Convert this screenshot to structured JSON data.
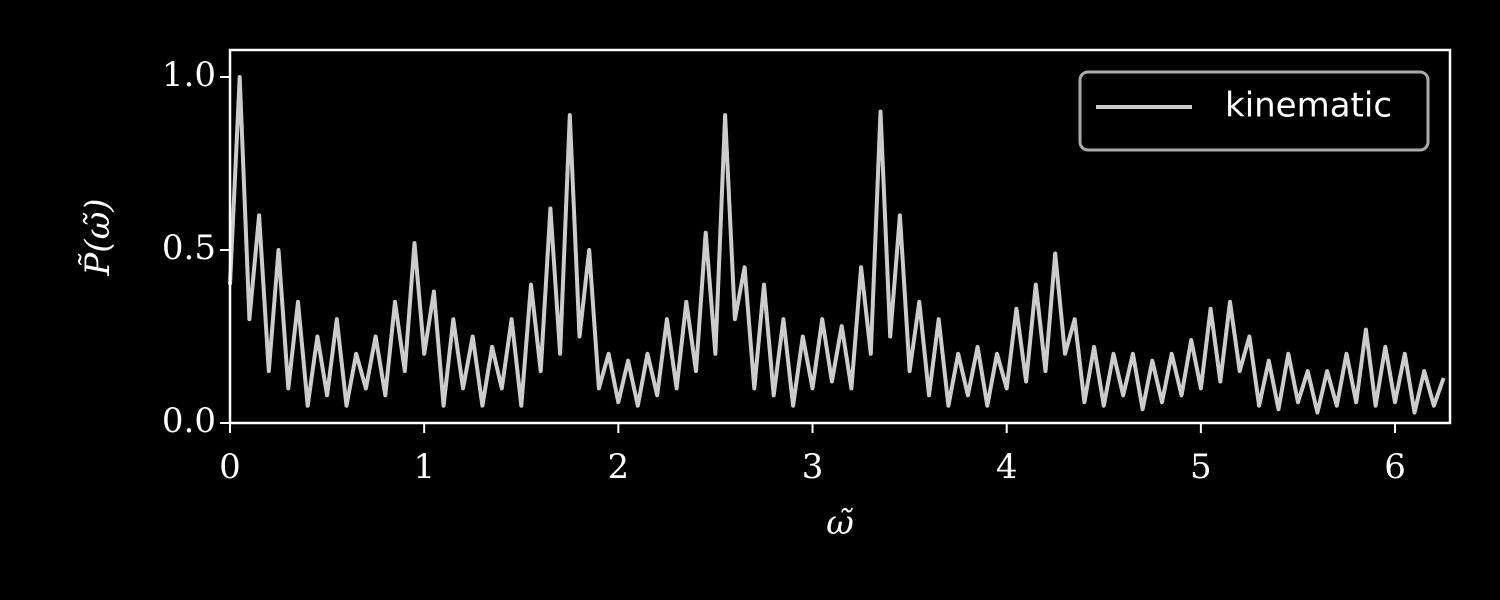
{
  "chart_data": {
    "type": "line",
    "xlabel": "ω̃",
    "ylabel": "P̃(ω̃)",
    "x": [
      0,
      0.05,
      0.1,
      0.15,
      0.2,
      0.25,
      0.3,
      0.35,
      0.4,
      0.45,
      0.5,
      0.55,
      0.6,
      0.65,
      0.7,
      0.75,
      0.8,
      0.85,
      0.9,
      0.95,
      1,
      1.05,
      1.1,
      1.15,
      1.2,
      1.25,
      1.3,
      1.35,
      1.4,
      1.45,
      1.5,
      1.55,
      1.6,
      1.65,
      1.7,
      1.75,
      1.8,
      1.85,
      1.9,
      1.95,
      2,
      2.05,
      2.1,
      2.15,
      2.2,
      2.25,
      2.3,
      2.35,
      2.4,
      2.45,
      2.5,
      2.55,
      2.6,
      2.65,
      2.7,
      2.75,
      2.8,
      2.85,
      2.9,
      2.95,
      3,
      3.05,
      3.1,
      3.15,
      3.2,
      3.25,
      3.3,
      3.35,
      3.4,
      3.45,
      3.5,
      3.55,
      3.6,
      3.65,
      3.7,
      3.75,
      3.8,
      3.85,
      3.9,
      3.95,
      4,
      4.05,
      4.1,
      4.15,
      4.2,
      4.25,
      4.3,
      4.35,
      4.4,
      4.45,
      4.5,
      4.55,
      4.6,
      4.65,
      4.7,
      4.75,
      4.8,
      4.85,
      4.9,
      4.95,
      5,
      5.05,
      5.1,
      5.15,
      5.2,
      5.25,
      5.3,
      5.35,
      5.4,
      5.45,
      5.5,
      5.55,
      5.6,
      5.65,
      5.7,
      5.75,
      5.8,
      5.85,
      5.9,
      5.95,
      6,
      6.05,
      6.1,
      6.15,
      6.2,
      6.25
    ],
    "series": [
      {
        "name": "kinematic",
        "color": "#cccccc",
        "values": [
          0.4,
          1.0,
          0.3,
          0.6,
          0.15,
          0.5,
          0.1,
          0.35,
          0.05,
          0.25,
          0.08,
          0.3,
          0.05,
          0.2,
          0.1,
          0.25,
          0.08,
          0.35,
          0.15,
          0.52,
          0.2,
          0.38,
          0.05,
          0.3,
          0.1,
          0.25,
          0.05,
          0.22,
          0.1,
          0.3,
          0.05,
          0.4,
          0.15,
          0.62,
          0.2,
          0.89,
          0.25,
          0.5,
          0.1,
          0.2,
          0.06,
          0.18,
          0.05,
          0.2,
          0.08,
          0.3,
          0.1,
          0.35,
          0.15,
          0.55,
          0.2,
          0.89,
          0.3,
          0.45,
          0.1,
          0.4,
          0.08,
          0.3,
          0.05,
          0.25,
          0.1,
          0.3,
          0.12,
          0.28,
          0.1,
          0.45,
          0.2,
          0.9,
          0.25,
          0.6,
          0.15,
          0.35,
          0.08,
          0.3,
          0.05,
          0.2,
          0.08,
          0.22,
          0.05,
          0.2,
          0.1,
          0.33,
          0.12,
          0.4,
          0.15,
          0.49,
          0.2,
          0.3,
          0.06,
          0.22,
          0.05,
          0.2,
          0.08,
          0.2,
          0.04,
          0.18,
          0.06,
          0.2,
          0.08,
          0.24,
          0.1,
          0.33,
          0.12,
          0.35,
          0.15,
          0.25,
          0.05,
          0.18,
          0.04,
          0.2,
          0.06,
          0.15,
          0.03,
          0.15,
          0.05,
          0.2,
          0.06,
          0.27,
          0.05,
          0.22,
          0.06,
          0.2,
          0.03,
          0.15,
          0.05,
          0.13
        ]
      }
    ],
    "xlim": [
      0,
      6.283
    ],
    "ylim": [
      0,
      1.078
    ],
    "xticks": [
      0,
      1,
      2,
      3,
      4,
      5,
      6
    ],
    "yticks": [
      {
        "value": 0,
        "label": "0.0"
      },
      {
        "value": 0.5,
        "label": "0.5"
      },
      {
        "value": 1,
        "label": "1.0"
      }
    ],
    "legend": "upper right"
  }
}
